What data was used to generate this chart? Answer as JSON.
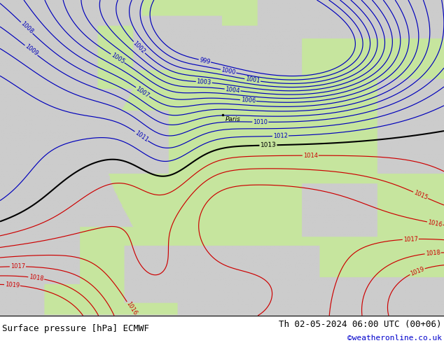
{
  "title_left": "Surface pressure [hPa] ECMWF",
  "title_right": "Th 02-05-2024 06:00 UTC (00+06)",
  "credit": "©weatheronline.co.uk",
  "ocean_color": [
    0.8,
    0.8,
    0.8
  ],
  "land_color": [
    0.78,
    0.9,
    0.62
  ],
  "contour_blue": "#0000bb",
  "contour_black": "#000000",
  "contour_red": "#cc0000",
  "font_size_title": 9,
  "font_size_credit": 8,
  "fig_width": 6.34,
  "fig_height": 4.9,
  "dpi": 100
}
